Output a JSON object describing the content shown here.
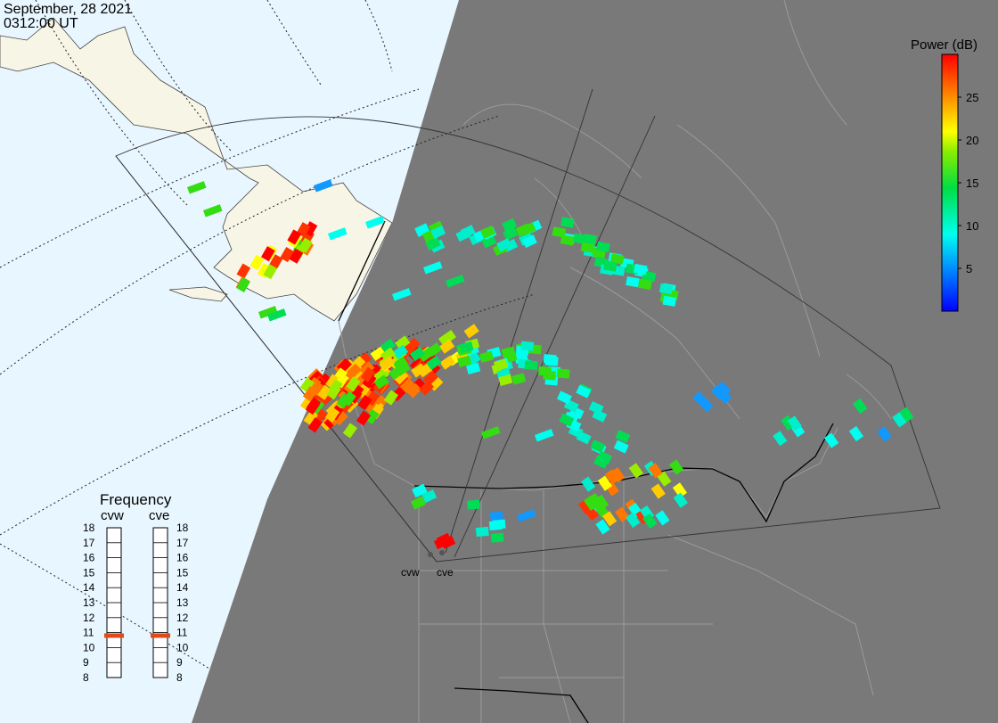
{
  "header": {
    "date": "September, 28 2021",
    "time": "0312:00 UT"
  },
  "colorbar": {
    "title": "Power (dB)",
    "ticks": [
      "25",
      "20",
      "15",
      "10",
      "5"
    ],
    "tick_values": [
      25,
      20,
      15,
      10,
      5
    ],
    "range": [
      0,
      30
    ]
  },
  "frequency": {
    "title": "Frequency",
    "radars": [
      {
        "name": "cvw",
        "current_mhz": 10.8,
        "color": "#e04a1a"
      },
      {
        "name": "cve",
        "current_mhz": 10.8,
        "color": "#e04a1a"
      }
    ],
    "ticks": [
      "18",
      "17",
      "16",
      "15",
      "14",
      "13",
      "12",
      "11",
      "10",
      "9",
      "8"
    ],
    "range": [
      8,
      18
    ]
  },
  "radar_sites": [
    "cvw",
    "cve"
  ],
  "colors": {
    "ocean": "#e8f6ff",
    "land_day": "#f7f5e6",
    "night": "#797979",
    "power_low": "#0000ff",
    "power_high": "#ff0000"
  }
}
